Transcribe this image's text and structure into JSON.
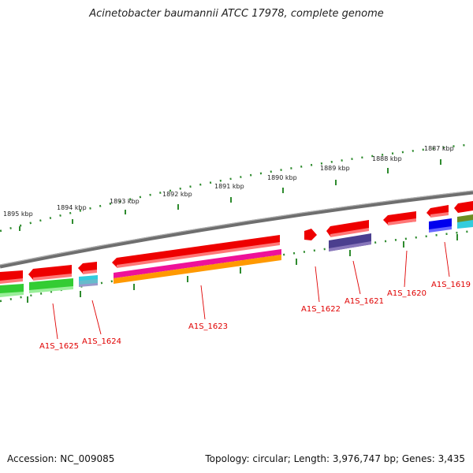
{
  "title": "Acinetobacter baumannii ATCC 17978, complete genome",
  "footer": {
    "accession": "Accession: NC_009085",
    "topology": "Topology: circular; Length: 3,976,747 bp; Genes: 3,435"
  },
  "kbp_labels": [
    "1895 kbp",
    "1894 kbp",
    "1893 kbp",
    "1892 kbp",
    "1891 kbp",
    "1890 kbp",
    "1889 kbp",
    "1888 kbp",
    "1887 kbp"
  ],
  "gene_labels": [
    "A1S_1625",
    "A1S_1624",
    "A1S_1623",
    "A1S_1622",
    "A1S_1621",
    "A1S_1620",
    "A1S_1619"
  ],
  "colors": {
    "backbone": "#808080",
    "tick": "#2e8b2e",
    "gene_label": "#e00000",
    "red_feature": "#ff0000",
    "green_feature": "#33cc33",
    "cyan_feature": "#33ccdd",
    "magenta_feature": "#ee1199",
    "orange_feature": "#ff9900",
    "purple_feature": "#4b3f8f",
    "blue_feature": "#0000ee",
    "olive_feature": "#6b8e23"
  }
}
